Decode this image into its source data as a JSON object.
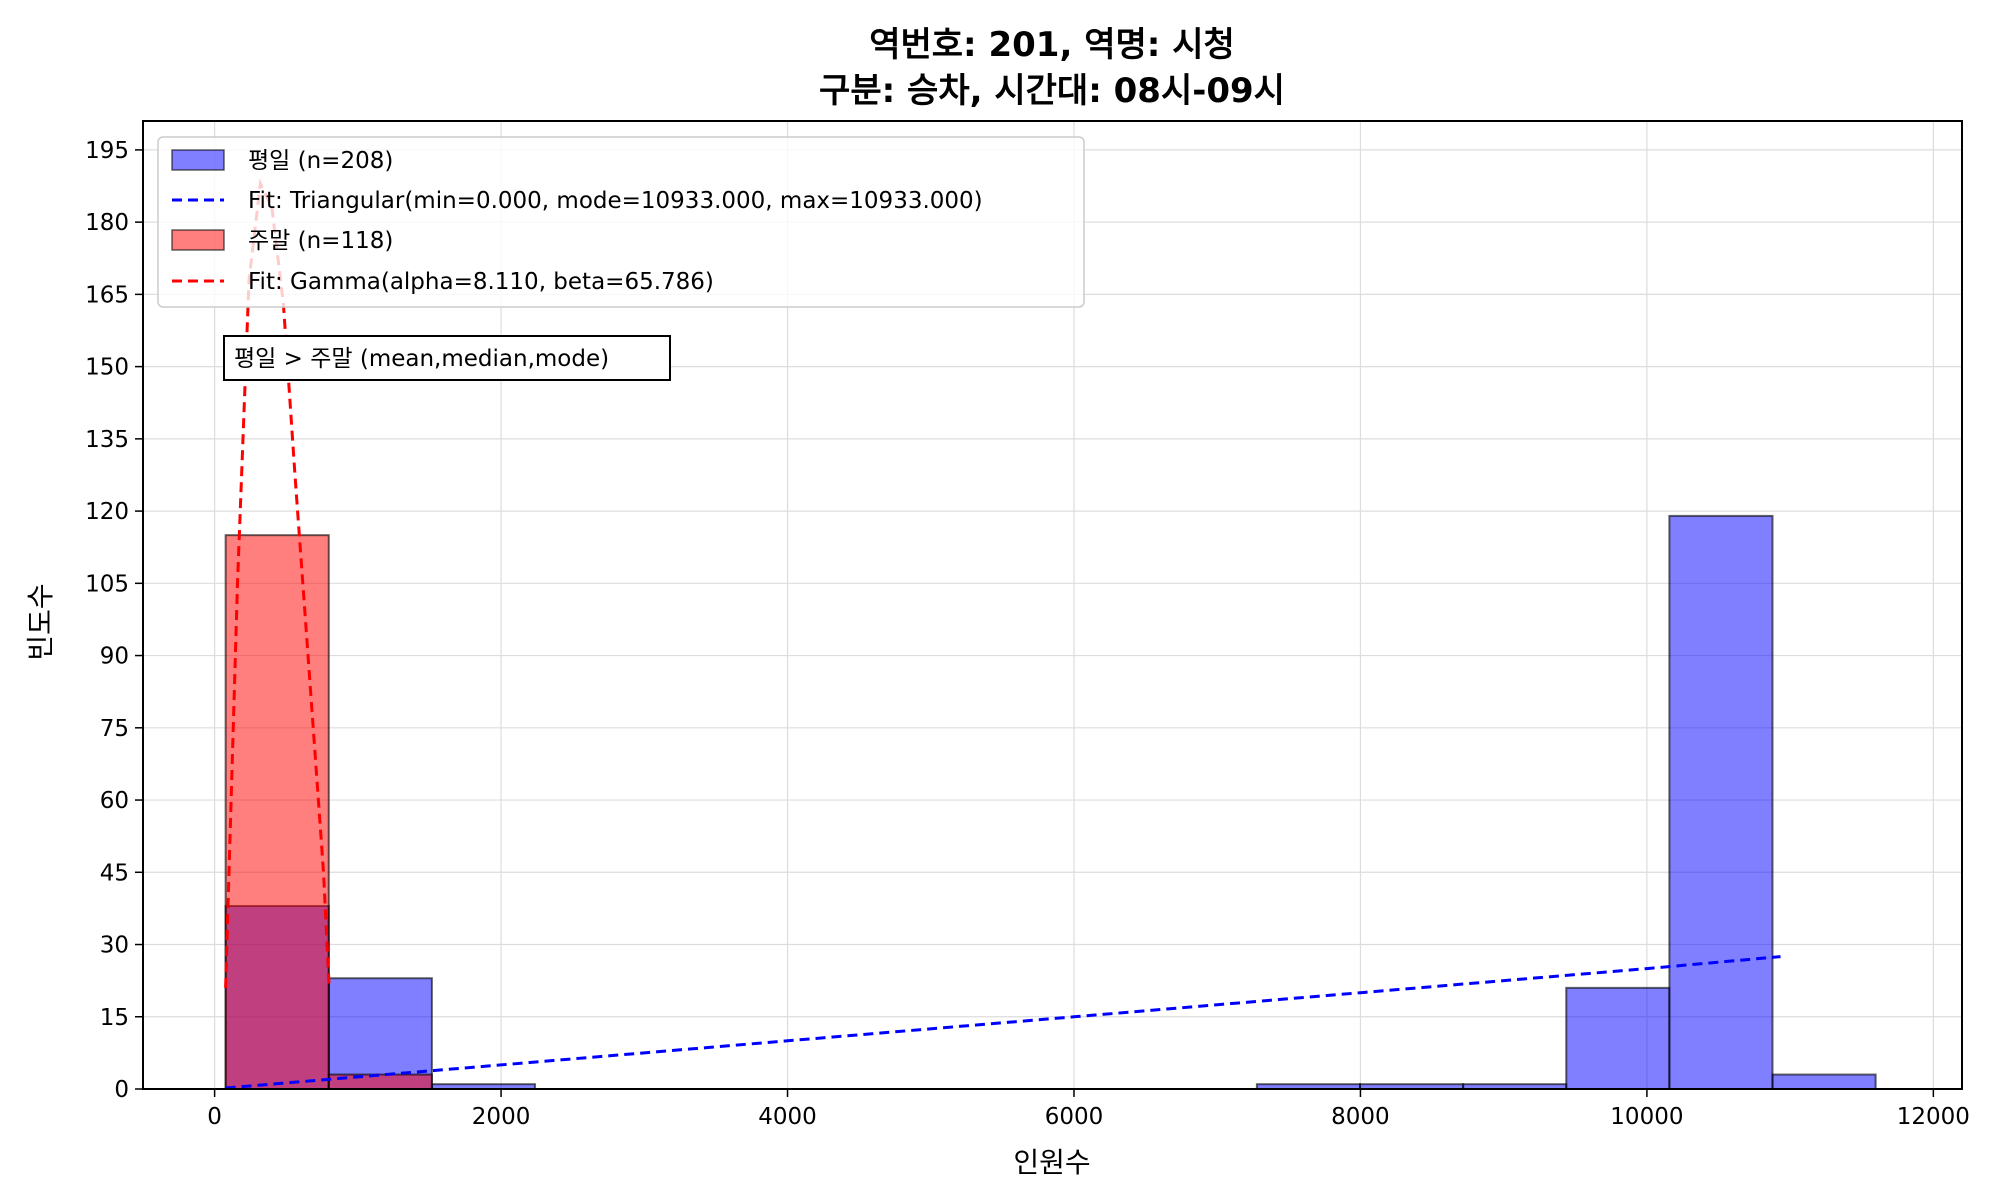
{
  "chart_data": {
    "type": "bar",
    "title_line1": "역번호: 201, 역명: 시청",
    "title_line2": "구분: 승차, 시간대: 08시-09시",
    "xlabel": "인원수",
    "ylabel": "빈도수",
    "xlim": [
      -500,
      12200
    ],
    "ylim": [
      0,
      201
    ],
    "x_ticks": [
      0,
      2000,
      4000,
      6000,
      8000,
      10000,
      12000
    ],
    "y_ticks": [
      0,
      15,
      30,
      45,
      60,
      75,
      90,
      105,
      120,
      135,
      150,
      165,
      180,
      195
    ],
    "grid": true,
    "legend_position": "top-left",
    "series": [
      {
        "name": "평일 (n=208)",
        "kind": "histogram",
        "color": "#0000ff",
        "bins": [
          {
            "x0": 77,
            "x1": 797,
            "count": 38
          },
          {
            "x0": 797,
            "x1": 1517,
            "count": 23
          },
          {
            "x0": 1517,
            "x1": 2237,
            "count": 1
          },
          {
            "x0": 7277,
            "x1": 7997,
            "count": 1
          },
          {
            "x0": 7997,
            "x1": 8717,
            "count": 1
          },
          {
            "x0": 8717,
            "x1": 9437,
            "count": 1
          },
          {
            "x0": 9437,
            "x1": 10157,
            "count": 21
          },
          {
            "x0": 10157,
            "x1": 10877,
            "count": 119
          },
          {
            "x0": 10877,
            "x1": 11597,
            "count": 3
          }
        ]
      },
      {
        "name": "Fit: Triangular(min=0.000, mode=10933.000, max=10933.000)",
        "kind": "fit-line",
        "color": "#0000ff",
        "points": [
          [
            77,
            0.2
          ],
          [
            2000,
            5
          ],
          [
            4000,
            10
          ],
          [
            6000,
            15
          ],
          [
            8000,
            20
          ],
          [
            10000,
            25
          ],
          [
            10933,
            27.5
          ]
        ]
      },
      {
        "name": "주말 (n=118)",
        "kind": "histogram",
        "color": "#ff0000",
        "bins": [
          {
            "x0": 77,
            "x1": 797,
            "count": 115
          },
          {
            "x0": 797,
            "x1": 1517,
            "count": 3
          }
        ]
      },
      {
        "name": "Fit: Gamma(alpha=8.110, beta=65.786)",
        "kind": "fit-line",
        "color": "#ff0000",
        "points": [
          [
            77,
            21
          ],
          [
            160,
            105
          ],
          [
            240,
            168
          ],
          [
            320,
            188
          ],
          [
            400,
            183
          ],
          [
            480,
            163
          ],
          [
            560,
            128
          ],
          [
            640,
            95
          ],
          [
            720,
            62
          ],
          [
            760,
            45
          ],
          [
            800,
            21
          ]
        ]
      }
    ],
    "annotation": "평일 > 주말 (mean,median,mode)"
  }
}
